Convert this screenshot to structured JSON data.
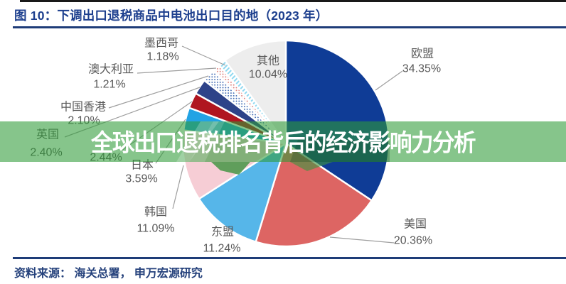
{
  "title": {
    "text": "图 10：下调出口退税商品中电池出口目的地（2023 年）"
  },
  "banner": {
    "text": "全球出口退税排名背后的经济影响力分析",
    "base_color": "#8dc98c"
  },
  "source": {
    "text": "资料来源： 海关总署， 申万宏源研究"
  },
  "chart_data": {
    "type": "pie",
    "title": "下调出口退税商品中电池出口目的地（2023 年）",
    "unit": "%",
    "series": [
      {
        "name": "欧盟",
        "value": 34.35,
        "pct_label": "34.35%",
        "fill": "#0f3c96"
      },
      {
        "name": "美国",
        "value": 20.36,
        "pct_label": "20.36%",
        "fill": "#dd6563"
      },
      {
        "name": "东盟",
        "value": 11.24,
        "pct_label": "11.24%",
        "fill": "#56b6e9"
      },
      {
        "name": "韩国",
        "value": 11.09,
        "pct_label": "11.09%",
        "fill": "#f6cdd5"
      },
      {
        "name": "日本",
        "value": 3.59,
        "pct_label": "3.59%",
        "fill": "#22a3e4"
      },
      {
        "name": "",
        "value": 2.44,
        "pct_label": "2.44%",
        "fill": "#b01620"
      },
      {
        "name": "英国",
        "value": 2.4,
        "pct_label": "2.40%",
        "fill": "#2e4389"
      },
      {
        "name": "中国香港",
        "value": 2.1,
        "pct_label": "2.10%",
        "fill": "pattern:dots-blue"
      },
      {
        "name": "澳大利亚",
        "value": 1.21,
        "pct_label": "1.21%",
        "fill": "pattern:dots-red"
      },
      {
        "name": "墨西哥",
        "value": 1.18,
        "pct_label": "1.18%",
        "fill": "pattern:stripes-cyan"
      },
      {
        "name": "其他",
        "value": 10.04,
        "pct_label": "10.04%",
        "fill": "#ededed"
      }
    ]
  }
}
